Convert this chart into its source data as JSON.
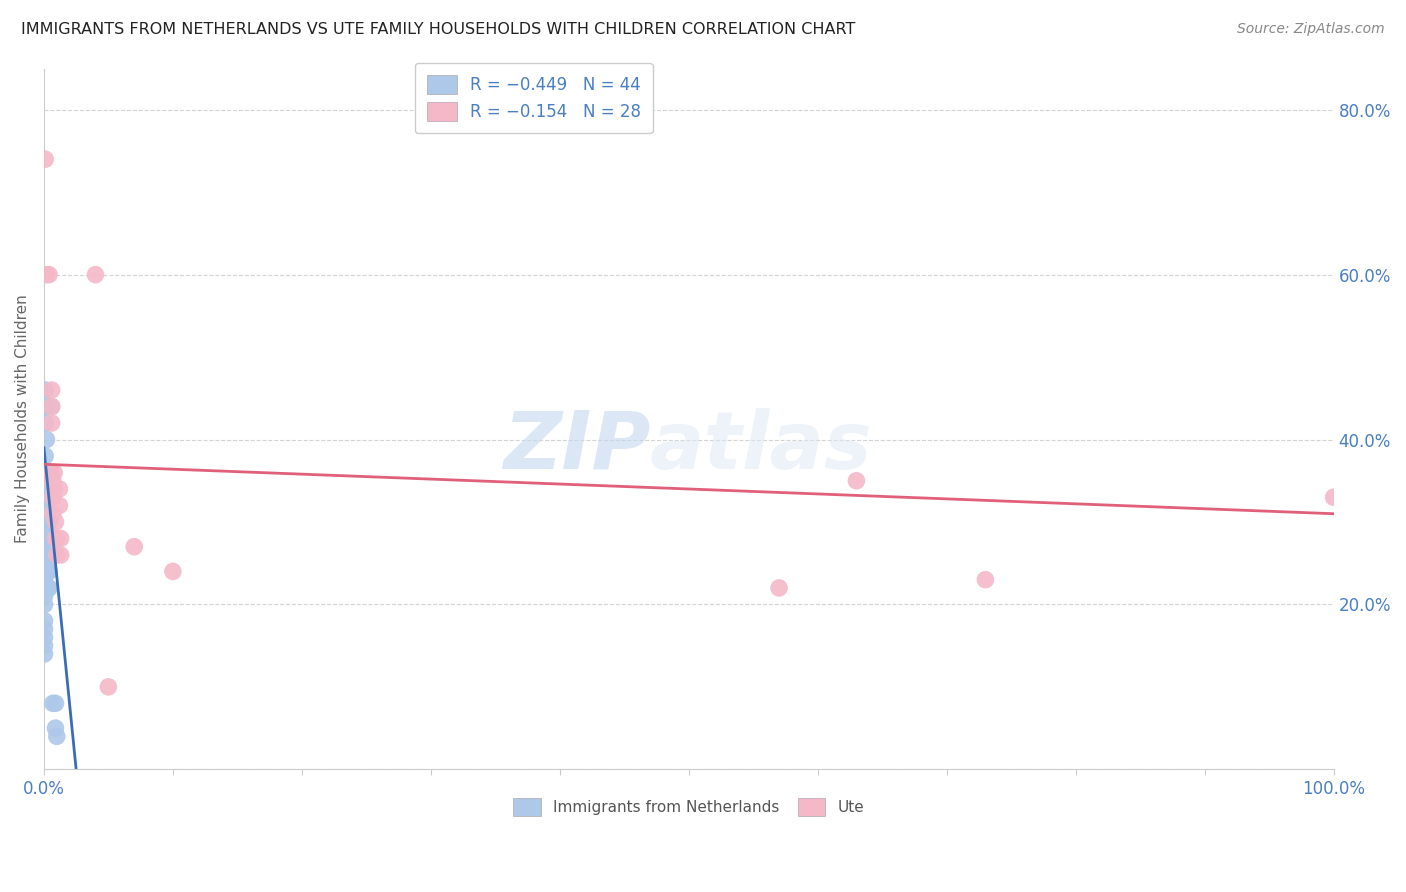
{
  "title": "IMMIGRANTS FROM NETHERLANDS VS UTE FAMILY HOUSEHOLDS WITH CHILDREN CORRELATION CHART",
  "source": "Source: ZipAtlas.com",
  "ylabel": "Family Households with Children",
  "legend_blue_r": "R = −0.449",
  "legend_blue_n": "N = 44",
  "legend_pink_r": "R = −0.154",
  "legend_pink_n": "N = 28",
  "legend_blue_label": "Immigrants from Netherlands",
  "legend_pink_label": "Ute",
  "blue_color": "#adc8e8",
  "blue_line_color": "#3a6db5",
  "pink_color": "#f4b8c8",
  "pink_line_color": "#e0607a",
  "blue_points": [
    [
      0.1,
      46
    ],
    [
      0.1,
      42
    ],
    [
      0.2,
      44
    ],
    [
      0.2,
      40
    ],
    [
      0.1,
      38
    ],
    [
      0.15,
      36
    ],
    [
      0.15,
      34
    ],
    [
      0.1,
      32
    ],
    [
      0.15,
      30
    ],
    [
      0.1,
      28
    ],
    [
      0.1,
      26
    ],
    [
      0.1,
      25
    ],
    [
      0.05,
      30
    ],
    [
      0.05,
      28
    ],
    [
      0.05,
      26
    ],
    [
      0.05,
      24
    ],
    [
      0.05,
      22
    ],
    [
      0.05,
      20
    ],
    [
      0.05,
      18
    ],
    [
      0.05,
      17
    ],
    [
      0.05,
      16
    ],
    [
      0.05,
      15
    ],
    [
      0.05,
      14
    ],
    [
      0.05,
      23
    ],
    [
      0.05,
      21
    ],
    [
      0.05,
      31
    ],
    [
      0.05,
      33
    ],
    [
      0.2,
      30
    ],
    [
      0.2,
      28
    ],
    [
      0.2,
      26
    ],
    [
      0.2,
      24
    ],
    [
      0.3,
      28
    ],
    [
      0.3,
      24
    ],
    [
      0.35,
      22
    ],
    [
      0.4,
      30
    ],
    [
      0.4,
      26
    ],
    [
      0.4,
      24
    ],
    [
      0.4,
      22
    ],
    [
      0.5,
      36
    ],
    [
      0.6,
      44
    ],
    [
      0.7,
      8
    ],
    [
      0.9,
      8
    ],
    [
      0.9,
      5
    ],
    [
      1.0,
      4
    ]
  ],
  "pink_points": [
    [
      0.1,
      74
    ],
    [
      0.2,
      60
    ],
    [
      0.4,
      60
    ],
    [
      0.6,
      46
    ],
    [
      0.6,
      44
    ],
    [
      0.6,
      42
    ],
    [
      0.6,
      36
    ],
    [
      0.7,
      35
    ],
    [
      0.7,
      33
    ],
    [
      0.7,
      31
    ],
    [
      0.8,
      36
    ],
    [
      0.8,
      34
    ],
    [
      0.9,
      30
    ],
    [
      0.9,
      28
    ],
    [
      1.0,
      28
    ],
    [
      1.0,
      26
    ],
    [
      1.2,
      34
    ],
    [
      1.2,
      32
    ],
    [
      1.3,
      28
    ],
    [
      1.3,
      26
    ],
    [
      4.0,
      60
    ],
    [
      5.0,
      10
    ],
    [
      7.0,
      27
    ],
    [
      10.0,
      24
    ],
    [
      57.0,
      22
    ],
    [
      63.0,
      35
    ],
    [
      73.0,
      23
    ],
    [
      100.0,
      33
    ]
  ],
  "blue_trendline_x": [
    0.0,
    2.5
  ],
  "blue_trendline_y": [
    39.0,
    0.0
  ],
  "pink_trendline_x": [
    0.0,
    100.0
  ],
  "pink_trendline_y": [
    37.0,
    31.0
  ],
  "watermark_zip": "ZIP",
  "watermark_atlas": "atlas",
  "background_color": "#ffffff",
  "grid_color": "#d0d0d0",
  "xlim": [
    0,
    100
  ],
  "ylim": [
    0,
    85
  ],
  "yticks": [
    0,
    20,
    40,
    60,
    80
  ],
  "ytick_labels": [
    "",
    "20.0%",
    "40.0%",
    "60.0%",
    "80.0%"
  ]
}
